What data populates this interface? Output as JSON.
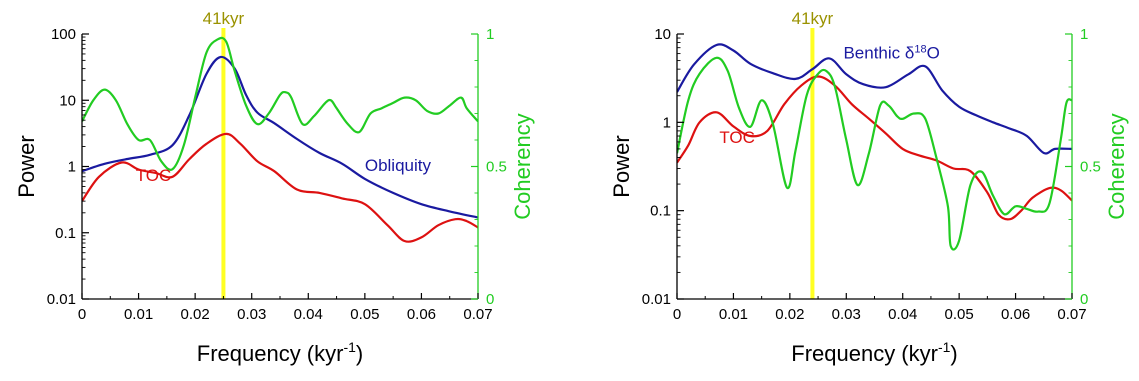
{
  "chart_data": [
    {
      "type": "line",
      "x_axis": {
        "label": "Frequency (kyr",
        "label_sup": "-1",
        "label_end": ")",
        "range": [
          0,
          0.07
        ],
        "ticks": [
          0,
          0.01,
          0.02,
          0.03,
          0.04,
          0.05,
          0.06,
          0.07
        ],
        "tick_labels": [
          "0",
          "0.01",
          "0.02",
          "0.03",
          "0.04",
          "0.05",
          "0.06",
          "0.07"
        ]
      },
      "y_left": {
        "label": "Power",
        "scale": "log",
        "range": [
          0.01,
          100
        ],
        "ticks": [
          0.01,
          0.1,
          1,
          10,
          100
        ],
        "tick_labels": [
          "0.01",
          "0.1",
          "1",
          "10",
          "100"
        ]
      },
      "y_right": {
        "label": "Coherency",
        "scale": "linear",
        "range": [
          0,
          1
        ],
        "ticks": [
          0,
          0.5,
          1
        ],
        "tick_labels": [
          "0",
          "0.5",
          "1"
        ]
      },
      "marker": {
        "x": 0.025,
        "label": "41kyr"
      },
      "series": [
        {
          "name": "Obliquity",
          "axis": "left",
          "label_at": [
            0.05,
            0.85
          ],
          "x": [
            0,
            0.004,
            0.008,
            0.012,
            0.016,
            0.019,
            0.022,
            0.0245,
            0.027,
            0.029,
            0.031,
            0.034,
            0.038,
            0.042,
            0.046,
            0.05,
            0.055,
            0.06,
            0.065,
            0.07
          ],
          "values": [
            0.85,
            1.1,
            1.3,
            1.5,
            2.1,
            6,
            25,
            45,
            30,
            12,
            6.5,
            4.5,
            2.6,
            1.6,
            1.1,
            0.65,
            0.4,
            0.27,
            0.21,
            0.17
          ]
        },
        {
          "name": "TOC",
          "axis": "left",
          "label_at": [
            0.0095,
            0.6
          ],
          "x": [
            0,
            0.003,
            0.007,
            0.01,
            0.013,
            0.016,
            0.019,
            0.022,
            0.0255,
            0.028,
            0.031,
            0.034,
            0.038,
            0.042,
            0.046,
            0.05,
            0.054,
            0.057,
            0.06,
            0.063,
            0.066,
            0.068,
            0.07
          ],
          "values": [
            0.3,
            0.7,
            1.15,
            0.9,
            0.8,
            0.7,
            1.3,
            2.2,
            3.1,
            2.2,
            1.2,
            0.85,
            0.45,
            0.4,
            0.33,
            0.27,
            0.13,
            0.075,
            0.085,
            0.13,
            0.16,
            0.15,
            0.12
          ]
        },
        {
          "name": "",
          "axis": "right",
          "x": [
            0,
            0.002,
            0.004,
            0.006,
            0.008,
            0.01,
            0.012,
            0.014,
            0.016,
            0.018,
            0.02,
            0.022,
            0.024,
            0.0255,
            0.027,
            0.029,
            0.031,
            0.033,
            0.035,
            0.036,
            0.037,
            0.039,
            0.041,
            0.043,
            0.044,
            0.045,
            0.047,
            0.049,
            0.051,
            0.053,
            0.055,
            0.057,
            0.059,
            0.061,
            0.063,
            0.065,
            0.067,
            0.068,
            0.07
          ],
          "values": [
            0.67,
            0.75,
            0.79,
            0.75,
            0.66,
            0.6,
            0.6,
            0.52,
            0.49,
            0.58,
            0.76,
            0.93,
            0.98,
            0.97,
            0.86,
            0.73,
            0.66,
            0.7,
            0.77,
            0.78,
            0.76,
            0.66,
            0.69,
            0.74,
            0.75,
            0.72,
            0.66,
            0.63,
            0.7,
            0.72,
            0.74,
            0.76,
            0.75,
            0.71,
            0.7,
            0.73,
            0.76,
            0.72,
            0.67
          ]
        }
      ]
    },
    {
      "type": "line",
      "x_axis": {
        "label": "Frequency (kyr",
        "label_sup": "-1",
        "label_end": ")",
        "range": [
          0,
          0.07
        ],
        "ticks": [
          0,
          0.01,
          0.02,
          0.03,
          0.04,
          0.05,
          0.06,
          0.07
        ],
        "tick_labels": [
          "0",
          "0.01",
          "0.02",
          "0.03",
          "0.04",
          "0.05",
          "0.06",
          "0.07"
        ]
      },
      "y_left": {
        "label": "Power",
        "scale": "log",
        "range": [
          0.01,
          10
        ],
        "ticks": [
          0.01,
          0.1,
          1,
          10
        ],
        "tick_labels": [
          "0.01",
          "0.1",
          "1",
          "10"
        ]
      },
      "y_right": {
        "label": "Coherency",
        "scale": "linear",
        "range": [
          0,
          1
        ],
        "ticks": [
          0,
          0.5,
          1
        ],
        "tick_labels": [
          "0",
          "0.5",
          "1"
        ]
      },
      "marker": {
        "x": 0.024,
        "label": "41kyr"
      },
      "series": [
        {
          "name": "Benthic δ",
          "name_sup": "18",
          "name_end": "O",
          "axis": "left",
          "label_at": [
            0.0295,
            5.3
          ],
          "x": [
            0,
            0.003,
            0.007,
            0.01,
            0.013,
            0.017,
            0.021,
            0.024,
            0.027,
            0.03,
            0.033,
            0.037,
            0.041,
            0.044,
            0.047,
            0.05,
            0.053,
            0.056,
            0.059,
            0.062,
            0.065,
            0.067,
            0.07
          ],
          "values": [
            2.2,
            4.5,
            7.5,
            6.5,
            4.6,
            3.6,
            3.1,
            4,
            5.3,
            3.5,
            2.7,
            2.5,
            3.5,
            4.3,
            2.3,
            1.5,
            1.2,
            1,
            0.85,
            0.7,
            0.45,
            0.5,
            0.5
          ]
        },
        {
          "name": "TOC",
          "axis": "left",
          "label_at": [
            0.0075,
            0.58
          ],
          "x": [
            0,
            0.002,
            0.004,
            0.007,
            0.01,
            0.013,
            0.016,
            0.019,
            0.022,
            0.025,
            0.028,
            0.031,
            0.034,
            0.037,
            0.04,
            0.043,
            0.046,
            0.049,
            0.052,
            0.055,
            0.057,
            0.059,
            0.061,
            0.063,
            0.066,
            0.068,
            0.07
          ],
          "values": [
            0.35,
            0.55,
            1.0,
            1.3,
            0.9,
            0.7,
            0.8,
            1.6,
            2.6,
            3.3,
            2.6,
            1.6,
            1.1,
            0.75,
            0.5,
            0.42,
            0.37,
            0.3,
            0.28,
            0.16,
            0.09,
            0.08,
            0.1,
            0.14,
            0.18,
            0.17,
            0.13
          ]
        },
        {
          "name": "",
          "axis": "right",
          "x": [
            0,
            0.002,
            0.004,
            0.007,
            0.009,
            0.011,
            0.013,
            0.015,
            0.017,
            0.0195,
            0.021,
            0.023,
            0.025,
            0.0265,
            0.028,
            0.03,
            0.032,
            0.034,
            0.036,
            0.0375,
            0.039,
            0.04,
            0.042,
            0.044,
            0.046,
            0.048,
            0.0485,
            0.05,
            0.052,
            0.054,
            0.056,
            0.058,
            0.06,
            0.062,
            0.064,
            0.066,
            0.068,
            0.069,
            0.07
          ],
          "values": [
            0.55,
            0.75,
            0.85,
            0.91,
            0.86,
            0.72,
            0.65,
            0.75,
            0.66,
            0.42,
            0.56,
            0.77,
            0.85,
            0.86,
            0.8,
            0.6,
            0.43,
            0.55,
            0.73,
            0.73,
            0.69,
            0.68,
            0.7,
            0.68,
            0.53,
            0.35,
            0.2,
            0.22,
            0.43,
            0.48,
            0.39,
            0.32,
            0.35,
            0.34,
            0.33,
            0.36,
            0.6,
            0.74,
            0.75
          ]
        }
      ]
    }
  ],
  "colors": {
    "axis": "#000000",
    "power_primary": "#1a1aa0",
    "toc": "#dd1111",
    "coherency": "#22cc22",
    "marker_line": "#ffff22",
    "marker_label": "#9a9200"
  }
}
